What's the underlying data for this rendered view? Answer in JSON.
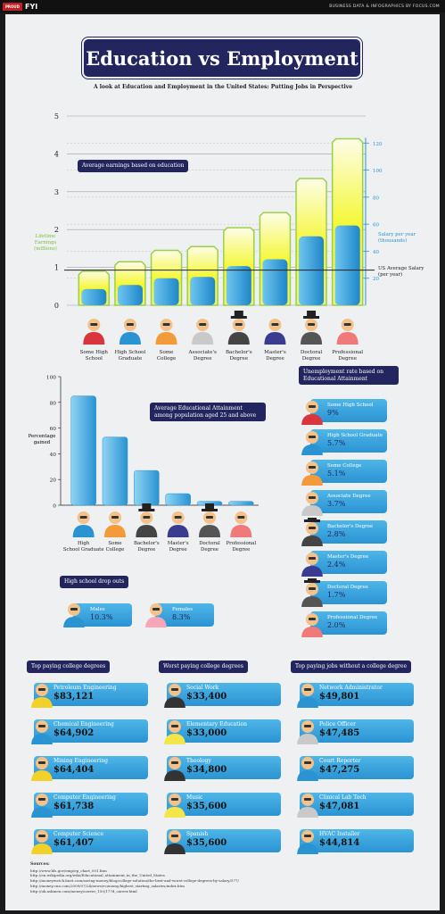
{
  "header": {
    "brand_tag": "PROUD",
    "brand_name": "FYI",
    "tagline": "BUSINESS DATA & INFOGRAPHICS BY FOCUS.COM"
  },
  "title": "Education vs Employment",
  "subtitle": "A look at Education and Employment in the United States: Putting Jobs in Perspective",
  "colors": {
    "navy": "#23255e",
    "blue": "#2a93d2",
    "yellow": "#f4f72a",
    "green": "#9bd04a"
  },
  "chart_data": [
    {
      "type": "bar",
      "title": "Average earnings based on education",
      "ylabel": "Lifetime Earnings (millions)",
      "y2label": "Salary per year (thousands)",
      "ylim": [
        0,
        5
      ],
      "y2lim": [
        0,
        140
      ],
      "yticks": [
        "0",
        "1",
        "2",
        "3",
        "4",
        "5"
      ],
      "y2ticks": [
        "20",
        "40",
        "60",
        "80",
        "100",
        "120"
      ],
      "categories": [
        "Some High School",
        "High School Graduate",
        "Some College",
        "Associate's Degree",
        "Bachelor's Degree",
        "Master's Degree",
        "Doctoral Degree",
        "Professional Degree"
      ],
      "series": [
        {
          "name": "Lifetime Earnings",
          "values": [
            0.9,
            1.15,
            1.45,
            1.55,
            2.05,
            2.45,
            3.35,
            4.4
          ]
        },
        {
          "name": "Salary per year",
          "values": [
            12,
            15,
            20,
            21,
            29,
            34,
            51,
            59
          ]
        }
      ],
      "reference_line": {
        "label": "US Average Salary (per year)",
        "value": 0.93
      }
    },
    {
      "type": "bar",
      "title": "Average Educational Attainment among population aged 25 and above",
      "ylabel": "Percentage gained",
      "ylim": [
        0,
        100
      ],
      "yticks": [
        "0",
        "20",
        "40",
        "60",
        "80",
        "100"
      ],
      "categories": [
        "High School Graduate",
        "Some College",
        "Bachelor's Degree",
        "Master's Degree",
        "Doctoral Degree",
        "Professional Degree"
      ],
      "values": [
        85,
        53,
        27,
        9,
        3,
        3
      ]
    },
    {
      "type": "table",
      "title": "Unemployment rate based on Educational Attainment",
      "rows": [
        {
          "label": "Some High School",
          "value": "9%"
        },
        {
          "label": "High School Graduate",
          "value": "5.7%"
        },
        {
          "label": "Some College",
          "value": "5.1%"
        },
        {
          "label": "Associate Degree",
          "value": "3.7%"
        },
        {
          "label": "Bachelor's Degree",
          "value": "2.8%"
        },
        {
          "label": "Master's Degree",
          "value": "2.4%"
        },
        {
          "label": "Doctoral Degree",
          "value": "1.7%"
        },
        {
          "label": "Professional Degree",
          "value": "2.0%"
        }
      ]
    },
    {
      "type": "table",
      "title": "High school drop outs",
      "rows": [
        {
          "label": "Males",
          "value": "10.3%"
        },
        {
          "label": "Females",
          "value": "8.3%"
        }
      ]
    },
    {
      "type": "table",
      "title": "Top paying college degrees",
      "rows": [
        {
          "label": "Petroleum Engineering",
          "value": "$83,121"
        },
        {
          "label": "Chemical Engineering",
          "value": "$64,902"
        },
        {
          "label": "Mining Engineering",
          "value": "$64,404"
        },
        {
          "label": "Computer Engineering",
          "value": "$61,738"
        },
        {
          "label": "Computer Science",
          "value": "$61,407"
        }
      ]
    },
    {
      "type": "table",
      "title": "Worst paying college degrees",
      "rows": [
        {
          "label": "Social Work",
          "value": "$33,400"
        },
        {
          "label": "Elementary Education",
          "value": "$33,000"
        },
        {
          "label": "Theology",
          "value": "$34,800"
        },
        {
          "label": "Music",
          "value": "$35,600"
        },
        {
          "label": "Spanish",
          "value": "$35,600"
        }
      ]
    },
    {
      "type": "table",
      "title": "Top paying jobs without a college degree",
      "rows": [
        {
          "label": "Network Administrator",
          "value": "$49,801"
        },
        {
          "label": "Police Officer",
          "value": "$47,485"
        },
        {
          "label": "Court Reporter",
          "value": "$47,275"
        },
        {
          "label": "Clinical Lab Tech",
          "value": "$47,081"
        },
        {
          "label": "HVAC Installer",
          "value": "$44,814"
        }
      ]
    }
  ],
  "sources": {
    "heading": "Sources:",
    "items": [
      "http://www.bls.gov/emp/ep_chart_001.htm",
      "http://en.wikipedia.org/wiki/Educational_attainment_in_the_United_States",
      "http://moneywatch.bnet.com/saving-money/blog/college-solution/the-best-and-worst-college-degrees-by-salary/577/",
      "http://money.cnn.com/2009/07/24/news/economy/highest_starting_salaries/index.htm",
      "http://uk.askmen.com/money/career_150/177d_career.html"
    ]
  }
}
